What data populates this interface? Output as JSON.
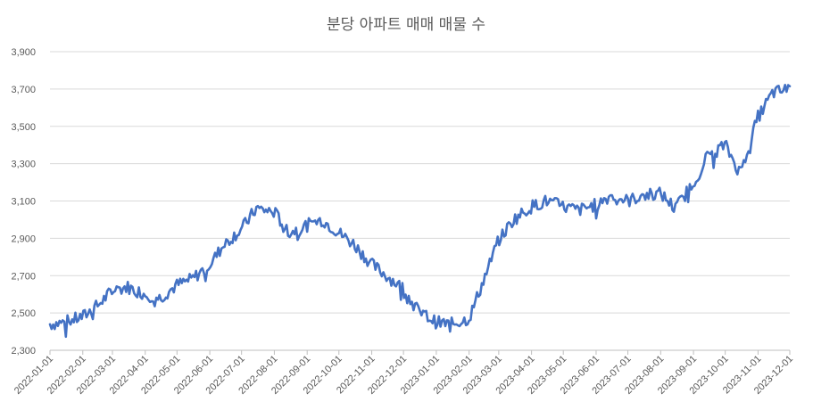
{
  "chart_data": {
    "type": "line",
    "title": "분당 아파트 매매 매물 수",
    "xlabel": "",
    "ylabel": "",
    "ylim": [
      2300,
      3900
    ],
    "yticks": [
      "2,300",
      "2,500",
      "2,700",
      "2,900",
      "3,100",
      "3,300",
      "3,500",
      "3,700",
      "3,900"
    ],
    "xticks": [
      "2022-01-01",
      "2022-02-01",
      "2022-03-01",
      "2022-04-01",
      "2022-05-01",
      "2022-06-01",
      "2022-07-01",
      "2022-08-01",
      "2022-09-01",
      "2022-10-01",
      "2022-11-01",
      "2022-12-01",
      "2023-01-01",
      "2023-02-01",
      "2023-03-01",
      "2023-04-01",
      "2023-05-01",
      "2023-06-01",
      "2023-07-01",
      "2023-08-01",
      "2023-09-01",
      "2023-10-01",
      "2023-11-01",
      "2023-12-01"
    ],
    "grid": true,
    "legend": "none",
    "color": "#4472C4",
    "series": [
      {
        "x": [
          "2022-01-01",
          "2022-01-15",
          "2022-02-01",
          "2022-02-15",
          "2022-03-01",
          "2022-03-15",
          "2022-04-01",
          "2022-04-15",
          "2022-05-01",
          "2022-05-15",
          "2022-06-01",
          "2022-06-15",
          "2022-07-01",
          "2022-07-15",
          "2022-08-01",
          "2022-08-15",
          "2022-09-01",
          "2022-09-15",
          "2022-10-01",
          "2022-10-15",
          "2022-11-01",
          "2022-11-15",
          "2022-12-01",
          "2022-12-15",
          "2023-01-01",
          "2023-01-15",
          "2023-02-01",
          "2023-02-15",
          "2023-03-01",
          "2023-03-15",
          "2023-04-01",
          "2023-04-15",
          "2023-05-01",
          "2023-05-15",
          "2023-06-01",
          "2023-06-15",
          "2023-07-01",
          "2023-07-15",
          "2023-08-01",
          "2023-08-15",
          "2023-09-01",
          "2023-09-15",
          "2023-10-01",
          "2023-10-15",
          "2023-11-01",
          "2023-11-15",
          "2023-12-01"
        ],
        "values": [
          2440,
          2450,
          2480,
          2540,
          2620,
          2640,
          2600,
          2580,
          2650,
          2680,
          2760,
          2870,
          2950,
          3060,
          3040,
          2930,
          2970,
          3000,
          2930,
          2870,
          2760,
          2700,
          2630,
          2510,
          2450,
          2440,
          2470,
          2680,
          2890,
          3000,
          3070,
          3100,
          3070,
          3050,
          3080,
          3130,
          3100,
          3130,
          3140,
          3060,
          3200,
          3350,
          3400,
          3250,
          3550,
          3680,
          3700
        ]
      }
    ]
  }
}
